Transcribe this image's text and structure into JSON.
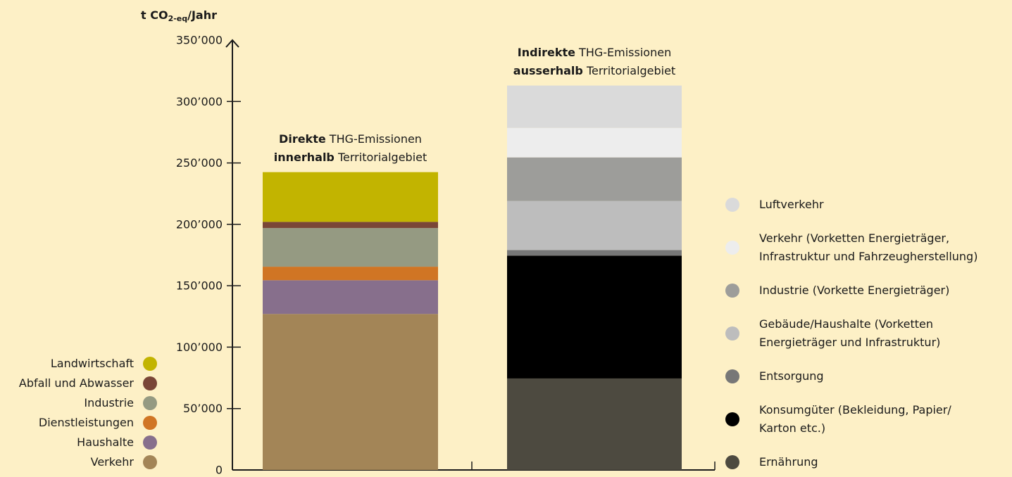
{
  "chart_data": {
    "type": "stacked_bar",
    "y_label": {
      "main": "t CO",
      "sub": "2-eq",
      "rest": "/Jahr"
    },
    "ylim": [
      0,
      350000
    ],
    "yticks": [
      0,
      {
        "value": 50000,
        "label": "50’000"
      },
      {
        "value": 100000,
        "label": "100’000"
      },
      {
        "value": 150000,
        "label": "150’000"
      },
      {
        "value": 200000,
        "label": "200’000"
      },
      {
        "value": 250000,
        "label": "250’000"
      },
      {
        "value": 300000,
        "label": "300’000"
      },
      {
        "value": 350000,
        "label": "350’000"
      }
    ],
    "bars": [
      {
        "title": [
          [
            "Direkte",
            " THG-Emissionen"
          ],
          [
            "innerhalb",
            " Territorialgebiet"
          ]
        ],
        "legend": "left",
        "series": [
          {
            "name": "Verkehr",
            "color": "#a38557",
            "value": 127000
          },
          {
            "name": "Haushalte",
            "color": "#876f8c",
            "value": 27500
          },
          {
            "name": "Dienstleistungen",
            "color": "#d07524",
            "value": 11000
          },
          {
            "name": "Industrie",
            "color": "#959a82",
            "value": 31500
          },
          {
            "name": "Abfall und Abwasser",
            "color": "#7a4637",
            "value": 5000
          },
          {
            "name": "Landwirtschaft",
            "color": "#c2b400",
            "value": 40500
          }
        ]
      },
      {
        "title": [
          [
            "Indirekte",
            " THG-Emissionen"
          ],
          [
            "ausserhalb",
            " Territorialgebiet"
          ]
        ],
        "legend": "right",
        "series": [
          {
            "name": "Ernährung",
            "color": "#4d4a40",
            "value": 74500
          },
          {
            "name": "Konsumgüter (Bekleidung, Papier/\nKarton etc.)",
            "color": "#000000",
            "value": 100000
          },
          {
            "name": "Entsorgung",
            "color": "#777777",
            "value": 4500
          },
          {
            "name": "Gebäude/Haushalte (Vorketten\nEnergieträger und Infrastruktur)",
            "color": "#bdbdbd",
            "value": 40000
          },
          {
            "name": "Industrie (Vorkette Energieträger)",
            "color": "#9d9d9a",
            "value": 35500
          },
          {
            "name": "Verkehr (Vorketten Energieträger,\nInfrastruktur und Fahrzeugherstellung)",
            "color": "#ededed",
            "value": 24000
          },
          {
            "name": "Luftverkehr",
            "color": "#dadada",
            "value": 34500
          }
        ]
      }
    ]
  }
}
